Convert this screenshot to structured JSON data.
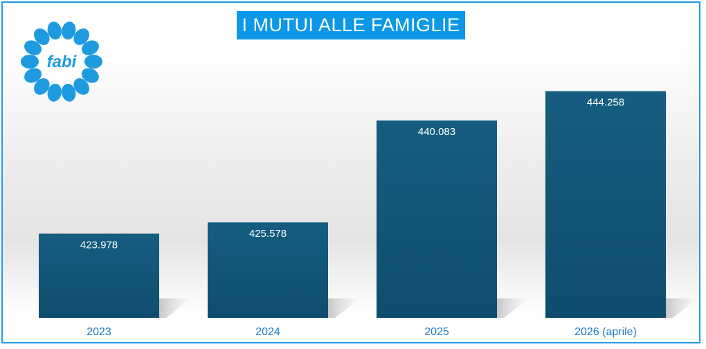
{
  "header": {
    "title": "I MUTUI ALLE FAMIGLIE",
    "logo_text": "fabi"
  },
  "colors": {
    "bar": "#155d80",
    "bar_dark": "#0f4d6e",
    "title_bg": "#0c98e6",
    "frame": "#1e9be0",
    "category_text": "#1e78c8",
    "logo_petal": "#1e9be0"
  },
  "chart_data": {
    "type": "bar",
    "categories": [
      "2023",
      "2024",
      "2025",
      "2026 (aprile)"
    ],
    "values": [
      423978,
      425578,
      440083,
      444258
    ],
    "value_labels": [
      "423.978",
      "425.578",
      "440.083",
      "444.258"
    ],
    "title": "I MUTUI ALLE FAMIGLIE",
    "xlabel": "",
    "ylabel": "",
    "ylim": [
      412000,
      446000
    ],
    "grid": false,
    "legend": "none"
  }
}
